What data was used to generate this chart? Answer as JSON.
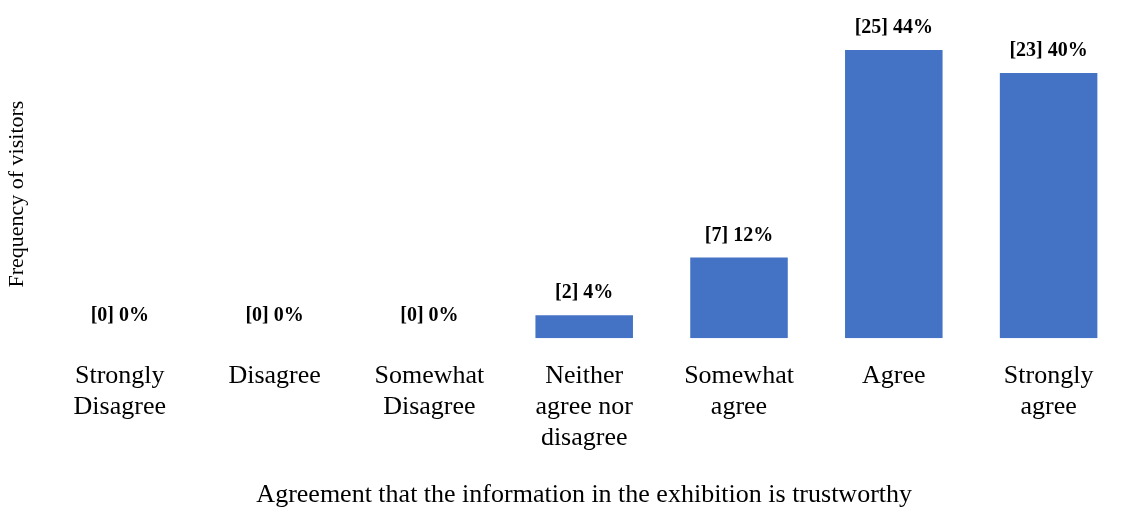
{
  "chart_data": {
    "type": "bar",
    "xlabel": "Agreement that the information in the exhibition is trustworthy",
    "ylabel": "Frequency of visitors",
    "categories": [
      "Strongly Disagree",
      "Disagree",
      "Somewhat Disagree",
      "Neither agree nor disagree",
      "Somewhat agree",
      "Agree",
      "Strongly agree"
    ],
    "values": [
      0,
      0,
      0,
      2,
      7,
      25,
      23
    ],
    "color": "#4472c4",
    "value_labels": [
      "[0] 0%",
      "[0] 0%",
      "[0] 0%",
      "[2] 4%",
      "[7] 12%",
      "[25] 44%",
      "[23] 40%"
    ],
    "grid": false,
    "legend": false
  }
}
